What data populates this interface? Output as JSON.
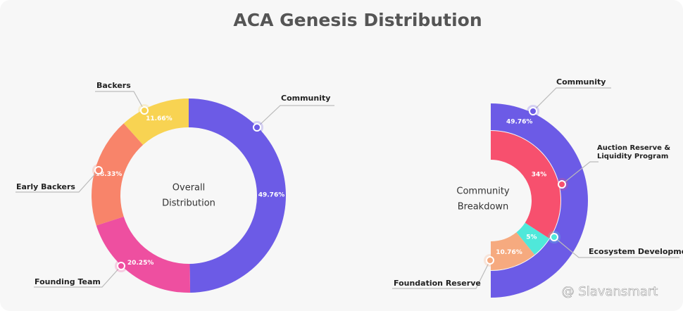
{
  "title": "ACA Genesis Distribution",
  "watermark": "@ Slavansmart",
  "chart_data": [
    {
      "type": "donut",
      "center_label": [
        "Overall",
        "Distribution"
      ],
      "categories": [
        "Community",
        "Founding Team",
        "Early Backers",
        "Backers"
      ],
      "values": [
        49.76,
        20.25,
        18.33,
        11.66
      ],
      "value_labels": [
        "49.76%",
        "20.25%",
        "18.33%",
        "11.66%"
      ],
      "colors": [
        "#6c5be6",
        "#ee4fa0",
        "#f8846a",
        "#f8d352"
      ]
    },
    {
      "type": "sunburst",
      "center_label": [
        "Community",
        "Breakdown"
      ],
      "outer": {
        "name": "Community",
        "value": 49.76,
        "value_label": "49.76%",
        "color": "#6c5be6"
      },
      "categories": [
        "Auction Reserve & Liquidity Program",
        "Ecosystem Development",
        "Foundation Reserve"
      ],
      "values": [
        34,
        5,
        10.76
      ],
      "value_labels": [
        "34%",
        "5%",
        "10.76%"
      ],
      "colors": [
        "#f7506e",
        "#4fe8da",
        "#f6aa7f"
      ]
    }
  ]
}
